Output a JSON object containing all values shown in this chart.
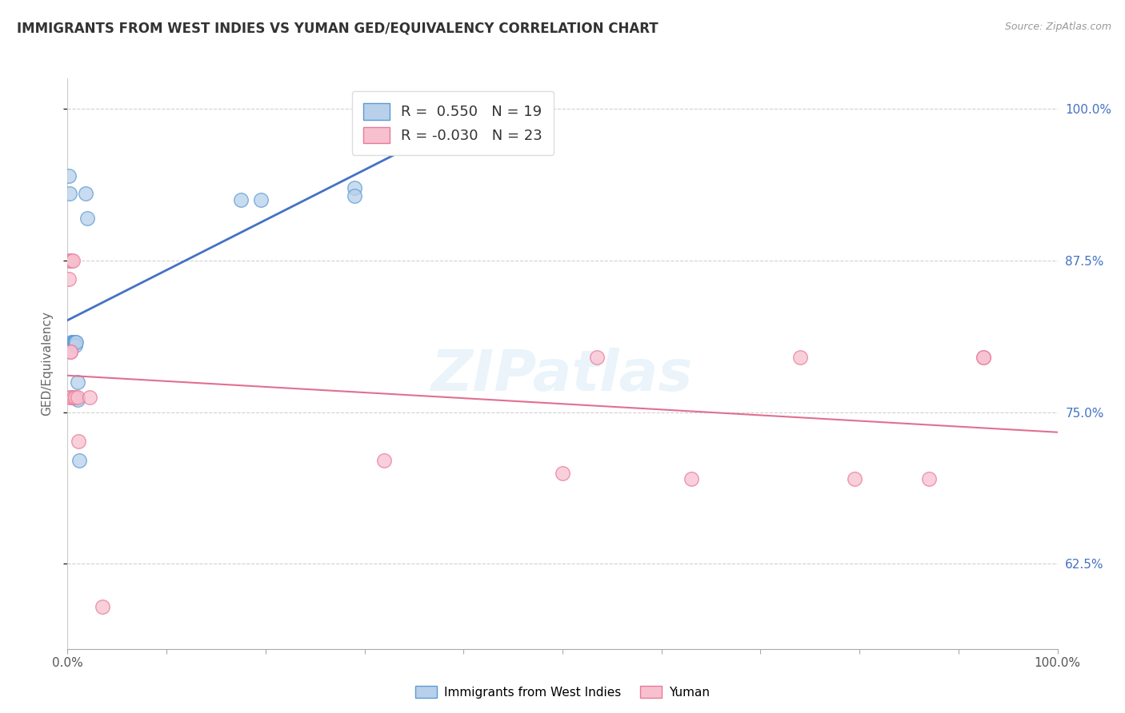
{
  "title": "IMMIGRANTS FROM WEST INDIES VS YUMAN GED/EQUIVALENCY CORRELATION CHART",
  "source": "Source: ZipAtlas.com",
  "ylabel": "GED/Equivalency",
  "xlim": [
    0.0,
    1.0
  ],
  "ylim": [
    0.555,
    1.025
  ],
  "yticks": [
    0.625,
    0.75,
    0.875,
    1.0
  ],
  "ytick_labels": [
    "62.5%",
    "75.0%",
    "87.5%",
    "100.0%"
  ],
  "xticks": [
    0.0,
    0.1,
    0.2,
    0.3,
    0.4,
    0.5,
    0.6,
    0.7,
    0.8,
    0.9,
    1.0
  ],
  "xtick_labels": [
    "0.0%",
    "",
    "",
    "",
    "",
    "",
    "",
    "",
    "",
    "",
    "100.0%"
  ],
  "blue_R": 0.55,
  "blue_N": 19,
  "pink_R": -0.03,
  "pink_N": 23,
  "blue_fill_color": "#b8d0ea",
  "blue_edge_color": "#5b9bd5",
  "pink_fill_color": "#f7c0cf",
  "pink_edge_color": "#e87a9a",
  "blue_line_color": "#4472c4",
  "pink_line_color": "#e07090",
  "watermark": "ZIPatlas",
  "blue_points_x": [
    0.001,
    0.002,
    0.004,
    0.005,
    0.006,
    0.007,
    0.007,
    0.008,
    0.008,
    0.009,
    0.01,
    0.01,
    0.012,
    0.018,
    0.02,
    0.175,
    0.195,
    0.29,
    0.29
  ],
  "blue_points_y": [
    0.945,
    0.93,
    0.808,
    0.808,
    0.808,
    0.808,
    0.808,
    0.808,
    0.805,
    0.808,
    0.775,
    0.76,
    0.71,
    0.93,
    0.91,
    0.925,
    0.925,
    0.935,
    0.928
  ],
  "pink_points_x": [
    0.001,
    0.001,
    0.002,
    0.003,
    0.003,
    0.004,
    0.004,
    0.005,
    0.006,
    0.008,
    0.01,
    0.011,
    0.022,
    0.035,
    0.32,
    0.5,
    0.535,
    0.63,
    0.74,
    0.795,
    0.87,
    0.925,
    0.925
  ],
  "pink_points_y": [
    0.875,
    0.86,
    0.762,
    0.8,
    0.8,
    0.875,
    0.762,
    0.875,
    0.762,
    0.762,
    0.762,
    0.726,
    0.762,
    0.59,
    0.71,
    0.7,
    0.795,
    0.695,
    0.795,
    0.695,
    0.695,
    0.795,
    0.795
  ]
}
